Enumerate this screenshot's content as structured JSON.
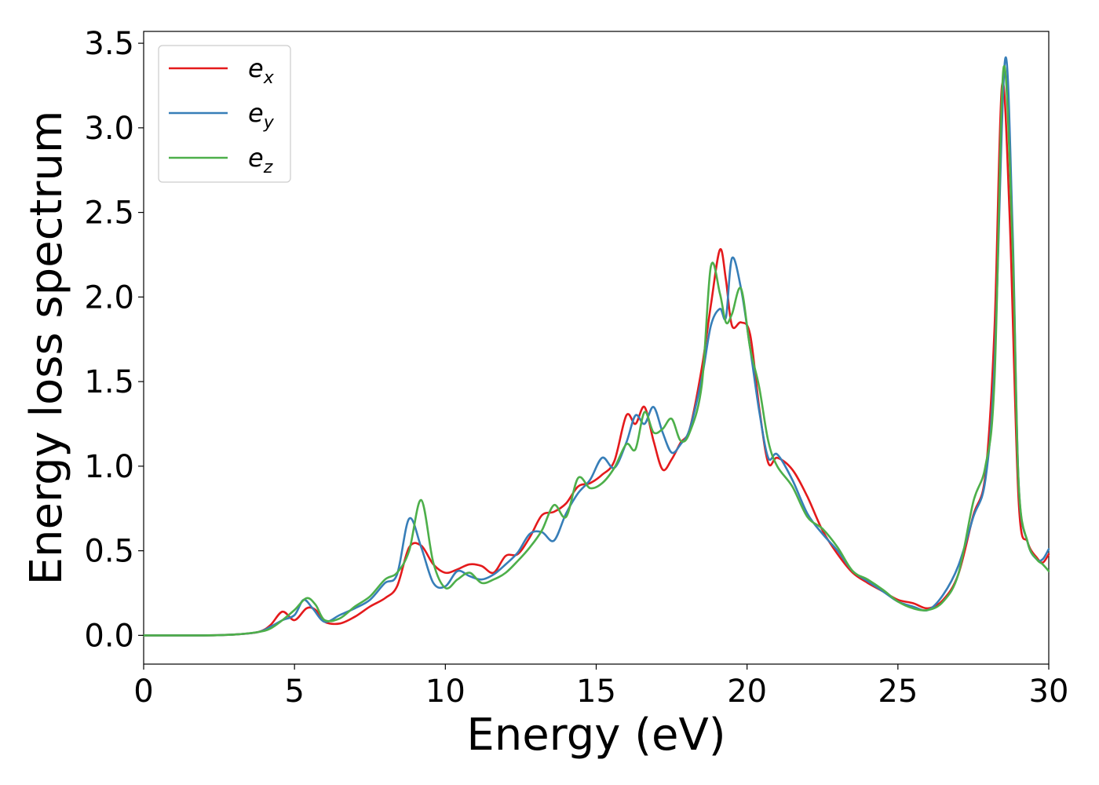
{
  "chart_data": {
    "type": "line",
    "title": "",
    "xlabel": "Energy (eV)",
    "ylabel": "Energy loss spectrum",
    "xlim": [
      0,
      30
    ],
    "ylim": [
      -0.17,
      3.57
    ],
    "xticks": [
      0,
      5,
      10,
      15,
      20,
      25,
      30
    ],
    "xtick_labels": [
      "0",
      "5",
      "10",
      "15",
      "20",
      "25",
      "30"
    ],
    "yticks": [
      0.0,
      0.5,
      1.0,
      1.5,
      2.0,
      2.5,
      3.0,
      3.5
    ],
    "ytick_labels": [
      "0.0",
      "0.5",
      "1.0",
      "1.5",
      "2.0",
      "2.5",
      "3.0",
      "3.5"
    ],
    "grid": false,
    "legend_position": "top-left",
    "series": [
      {
        "name": "e_x",
        "label_base": "e",
        "label_sub": "x",
        "color": "#e41a1c",
        "points": [
          [
            0,
            0
          ],
          [
            2,
            0
          ],
          [
            3,
            0.005
          ],
          [
            3.8,
            0.02
          ],
          [
            4.2,
            0.06
          ],
          [
            4.6,
            0.14
          ],
          [
            5.0,
            0.09
          ],
          [
            5.4,
            0.16
          ],
          [
            5.7,
            0.15
          ],
          [
            6.0,
            0.08
          ],
          [
            6.5,
            0.07
          ],
          [
            7.0,
            0.11
          ],
          [
            7.5,
            0.17
          ],
          [
            8.0,
            0.22
          ],
          [
            8.4,
            0.29
          ],
          [
            8.8,
            0.52
          ],
          [
            9.2,
            0.53
          ],
          [
            9.6,
            0.42
          ],
          [
            10.0,
            0.37
          ],
          [
            10.4,
            0.39
          ],
          [
            10.8,
            0.42
          ],
          [
            11.2,
            0.41
          ],
          [
            11.6,
            0.37
          ],
          [
            12.0,
            0.47
          ],
          [
            12.4,
            0.48
          ],
          [
            12.8,
            0.58
          ],
          [
            13.2,
            0.71
          ],
          [
            13.6,
            0.73
          ],
          [
            14.0,
            0.78
          ],
          [
            14.4,
            0.88
          ],
          [
            14.8,
            0.9
          ],
          [
            15.2,
            0.95
          ],
          [
            15.6,
            1.03
          ],
          [
            16.0,
            1.3
          ],
          [
            16.3,
            1.25
          ],
          [
            16.6,
            1.35
          ],
          [
            16.9,
            1.15
          ],
          [
            17.2,
            0.98
          ],
          [
            17.5,
            1.04
          ],
          [
            17.8,
            1.14
          ],
          [
            18.1,
            1.22
          ],
          [
            18.5,
            1.58
          ],
          [
            18.8,
            1.95
          ],
          [
            19.1,
            2.28
          ],
          [
            19.3,
            2.1
          ],
          [
            19.5,
            1.83
          ],
          [
            19.8,
            1.85
          ],
          [
            20.1,
            1.78
          ],
          [
            20.4,
            1.35
          ],
          [
            20.7,
            1.02
          ],
          [
            21.0,
            1.05
          ],
          [
            21.5,
            0.98
          ],
          [
            22.0,
            0.82
          ],
          [
            22.5,
            0.62
          ],
          [
            23.0,
            0.48
          ],
          [
            23.5,
            0.37
          ],
          [
            24.0,
            0.31
          ],
          [
            24.5,
            0.26
          ],
          [
            25.0,
            0.21
          ],
          [
            25.5,
            0.19
          ],
          [
            26.0,
            0.16
          ],
          [
            26.5,
            0.21
          ],
          [
            27.0,
            0.36
          ],
          [
            27.5,
            0.71
          ],
          [
            27.9,
            0.95
          ],
          [
            28.2,
            1.8
          ],
          [
            28.45,
            3.25
          ],
          [
            28.7,
            2.5
          ],
          [
            29.0,
            0.8
          ],
          [
            29.3,
            0.55
          ],
          [
            29.6,
            0.46
          ],
          [
            29.8,
            0.43
          ],
          [
            30.0,
            0.48
          ]
        ]
      },
      {
        "name": "e_y",
        "label_base": "e",
        "label_sub": "y",
        "color": "#377eb8",
        "points": [
          [
            0,
            0
          ],
          [
            2,
            0
          ],
          [
            3,
            0.005
          ],
          [
            3.8,
            0.02
          ],
          [
            4.2,
            0.05
          ],
          [
            4.6,
            0.09
          ],
          [
            5.0,
            0.12
          ],
          [
            5.3,
            0.21
          ],
          [
            5.6,
            0.16
          ],
          [
            6.0,
            0.08
          ],
          [
            6.5,
            0.12
          ],
          [
            7.0,
            0.16
          ],
          [
            7.5,
            0.21
          ],
          [
            8.0,
            0.31
          ],
          [
            8.4,
            0.36
          ],
          [
            8.8,
            0.69
          ],
          [
            9.2,
            0.52
          ],
          [
            9.6,
            0.31
          ],
          [
            10.0,
            0.29
          ],
          [
            10.4,
            0.38
          ],
          [
            10.8,
            0.35
          ],
          [
            11.2,
            0.33
          ],
          [
            11.6,
            0.36
          ],
          [
            12.0,
            0.42
          ],
          [
            12.4,
            0.49
          ],
          [
            12.8,
            0.6
          ],
          [
            13.2,
            0.61
          ],
          [
            13.6,
            0.56
          ],
          [
            14.0,
            0.72
          ],
          [
            14.4,
            0.84
          ],
          [
            14.8,
            0.92
          ],
          [
            15.2,
            1.05
          ],
          [
            15.6,
            0.99
          ],
          [
            16.0,
            1.14
          ],
          [
            16.3,
            1.3
          ],
          [
            16.6,
            1.25
          ],
          [
            16.9,
            1.35
          ],
          [
            17.2,
            1.2
          ],
          [
            17.5,
            1.08
          ],
          [
            17.8,
            1.13
          ],
          [
            18.1,
            1.22
          ],
          [
            18.5,
            1.52
          ],
          [
            18.8,
            1.83
          ],
          [
            19.1,
            1.93
          ],
          [
            19.3,
            1.88
          ],
          [
            19.5,
            2.23
          ],
          [
            19.8,
            2.05
          ],
          [
            20.1,
            1.7
          ],
          [
            20.4,
            1.33
          ],
          [
            20.7,
            1.05
          ],
          [
            21.0,
            1.07
          ],
          [
            21.5,
            0.92
          ],
          [
            22.0,
            0.72
          ],
          [
            22.5,
            0.6
          ],
          [
            23.0,
            0.5
          ],
          [
            23.5,
            0.38
          ],
          [
            24.0,
            0.32
          ],
          [
            24.5,
            0.26
          ],
          [
            25.0,
            0.2
          ],
          [
            25.5,
            0.17
          ],
          [
            26.0,
            0.15
          ],
          [
            26.5,
            0.24
          ],
          [
            27.0,
            0.41
          ],
          [
            27.5,
            0.7
          ],
          [
            27.9,
            0.92
          ],
          [
            28.2,
            1.6
          ],
          [
            28.55,
            3.4
          ],
          [
            28.8,
            2.4
          ],
          [
            29.0,
            0.9
          ],
          [
            29.3,
            0.55
          ],
          [
            29.6,
            0.45
          ],
          [
            29.8,
            0.45
          ],
          [
            30.0,
            0.51
          ]
        ]
      },
      {
        "name": "e_z",
        "label_base": "e",
        "label_sub": "z",
        "color": "#4daf4a",
        "points": [
          [
            0,
            0
          ],
          [
            2,
            0
          ],
          [
            3,
            0.005
          ],
          [
            3.8,
            0.02
          ],
          [
            4.2,
            0.04
          ],
          [
            4.6,
            0.09
          ],
          [
            5.0,
            0.15
          ],
          [
            5.4,
            0.22
          ],
          [
            5.7,
            0.18
          ],
          [
            6.0,
            0.09
          ],
          [
            6.5,
            0.1
          ],
          [
            7.0,
            0.17
          ],
          [
            7.5,
            0.23
          ],
          [
            8.0,
            0.33
          ],
          [
            8.4,
            0.37
          ],
          [
            8.8,
            0.5
          ],
          [
            9.2,
            0.8
          ],
          [
            9.6,
            0.43
          ],
          [
            10.0,
            0.28
          ],
          [
            10.4,
            0.33
          ],
          [
            10.8,
            0.37
          ],
          [
            11.2,
            0.31
          ],
          [
            11.6,
            0.33
          ],
          [
            12.0,
            0.37
          ],
          [
            12.4,
            0.44
          ],
          [
            12.8,
            0.52
          ],
          [
            13.2,
            0.62
          ],
          [
            13.6,
            0.77
          ],
          [
            14.0,
            0.7
          ],
          [
            14.4,
            0.93
          ],
          [
            14.8,
            0.87
          ],
          [
            15.2,
            0.9
          ],
          [
            15.6,
            0.99
          ],
          [
            16.0,
            1.13
          ],
          [
            16.3,
            1.1
          ],
          [
            16.6,
            1.32
          ],
          [
            16.9,
            1.2
          ],
          [
            17.2,
            1.22
          ],
          [
            17.5,
            1.28
          ],
          [
            17.8,
            1.15
          ],
          [
            18.1,
            1.2
          ],
          [
            18.5,
            1.48
          ],
          [
            18.8,
            2.18
          ],
          [
            19.1,
            2.02
          ],
          [
            19.3,
            1.85
          ],
          [
            19.5,
            1.9
          ],
          [
            19.8,
            2.05
          ],
          [
            20.1,
            1.7
          ],
          [
            20.4,
            1.47
          ],
          [
            20.7,
            1.15
          ],
          [
            21.0,
            1.0
          ],
          [
            21.5,
            0.88
          ],
          [
            22.0,
            0.7
          ],
          [
            22.5,
            0.63
          ],
          [
            23.0,
            0.52
          ],
          [
            23.5,
            0.38
          ],
          [
            24.0,
            0.33
          ],
          [
            24.5,
            0.27
          ],
          [
            25.0,
            0.2
          ],
          [
            25.5,
            0.16
          ],
          [
            26.0,
            0.15
          ],
          [
            26.5,
            0.2
          ],
          [
            27.0,
            0.36
          ],
          [
            27.5,
            0.79
          ],
          [
            27.9,
            1.0
          ],
          [
            28.2,
            1.5
          ],
          [
            28.5,
            3.35
          ],
          [
            28.8,
            2.3
          ],
          [
            29.0,
            0.9
          ],
          [
            29.3,
            0.55
          ],
          [
            29.6,
            0.45
          ],
          [
            29.8,
            0.42
          ],
          [
            30.0,
            0.38
          ]
        ]
      }
    ]
  }
}
